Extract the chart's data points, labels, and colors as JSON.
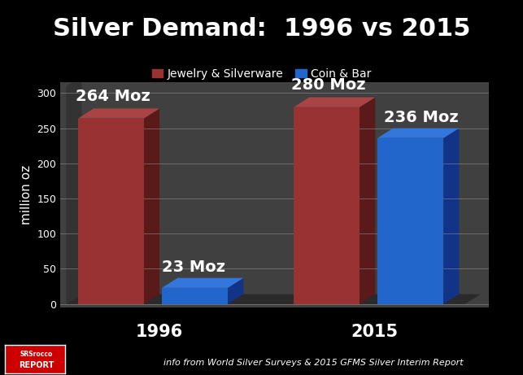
{
  "title": "Silver Demand:  1996 vs 2015",
  "title_fontsize": 22,
  "title_color": "white",
  "title_fontweight": "bold",
  "background_color": "#000000",
  "plot_bg_color": "#404040",
  "floor_color": "#2a2a2a",
  "ylabel": "million oz",
  "ylabel_color": "white",
  "ylabel_fontsize": 11,
  "ylim": [
    0,
    310
  ],
  "yticks": [
    0,
    50,
    100,
    150,
    200,
    250,
    300
  ],
  "ytick_color": "white",
  "ytick_fontsize": 9,
  "grid_color": "#aaaaaa",
  "legend_labels": [
    "Jewelry & Silverware",
    "Coin & Bar"
  ],
  "legend_colors": [
    "#993333",
    "#2266CC"
  ],
  "bars": [
    {
      "value": 264,
      "color": "#993333",
      "side_color": "#5a1a1a",
      "top_color": "#aa4444"
    },
    {
      "value": 23,
      "color": "#2266CC",
      "side_color": "#113388",
      "top_color": "#3377dd"
    },
    {
      "value": 280,
      "color": "#993333",
      "side_color": "#5a1a1a",
      "top_color": "#aa4444"
    },
    {
      "value": 236,
      "color": "#2266CC",
      "side_color": "#113388",
      "top_color": "#3377dd"
    }
  ],
  "bar_labels": [
    "264 Moz",
    "23 Moz",
    "280 Moz",
    "236 Moz"
  ],
  "bar_label_fontsize": 14,
  "bar_label_color": "white",
  "bar_label_fontweight": "bold",
  "group_labels": [
    "1996",
    "2015"
  ],
  "group_label_fontsize": 15,
  "group_label_color": "white",
  "group_label_fontweight": "bold",
  "footer_text": "info from World Silver Surveys & 2015 GFMS Silver Interim Report",
  "footer_fontsize": 8,
  "footer_color": "white",
  "footer_style": "italic"
}
